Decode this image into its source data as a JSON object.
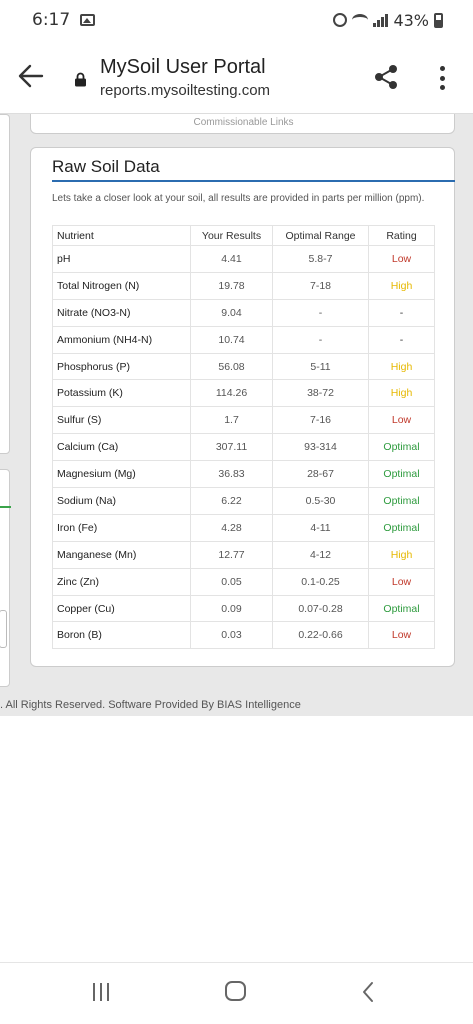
{
  "status_bar": {
    "time": "6:17",
    "battery": "43%",
    "icons": [
      "image-icon",
      "alarm-icon",
      "wifi-icon",
      "signal-icon",
      "battery-icon"
    ]
  },
  "browser": {
    "title": "MySoil User Portal",
    "url": "reports.mysoiltesting.com",
    "icons": [
      "back-arrow-icon",
      "lock-icon",
      "share-icon",
      "more-vert-icon"
    ]
  },
  "top_card": {
    "link_text": "Commissionable Links"
  },
  "card": {
    "title": "Raw Soil Data",
    "intro": "Lets take a closer look at your soil, all results are provided in parts per million (ppm).",
    "columns": [
      "Nutrient",
      "Your Results",
      "Optimal Range",
      "Rating"
    ],
    "rows": [
      {
        "nutrient": "pH",
        "result": "4.41",
        "range": "5.8-7",
        "rating": "Low"
      },
      {
        "nutrient": "Total Nitrogen (N)",
        "result": "19.78",
        "range": "7-18",
        "rating": "High"
      },
      {
        "nutrient": "Nitrate (NO3-N)",
        "result": "9.04",
        "range": "-",
        "rating": "-"
      },
      {
        "nutrient": "Ammonium (NH4-N)",
        "result": "10.74",
        "range": "-",
        "rating": "-"
      },
      {
        "nutrient": "Phosphorus (P)",
        "result": "56.08",
        "range": "5-11",
        "rating": "High"
      },
      {
        "nutrient": "Potassium (K)",
        "result": "114.26",
        "range": "38-72",
        "rating": "High"
      },
      {
        "nutrient": "Sulfur (S)",
        "result": "1.7",
        "range": "7-16",
        "rating": "Low"
      },
      {
        "nutrient": "Calcium (Ca)",
        "result": "307.11",
        "range": "93-314",
        "rating": "Optimal"
      },
      {
        "nutrient": "Magnesium (Mg)",
        "result": "36.83",
        "range": "28-67",
        "rating": "Optimal"
      },
      {
        "nutrient": "Sodium (Na)",
        "result": "6.22",
        "range": "0.5-30",
        "rating": "Optimal"
      },
      {
        "nutrient": "Iron (Fe)",
        "result": "4.28",
        "range": "4-11",
        "rating": "Optimal"
      },
      {
        "nutrient": "Manganese (Mn)",
        "result": "12.77",
        "range": "4-12",
        "rating": "High"
      },
      {
        "nutrient": "Zinc (Zn)",
        "result": "0.05",
        "range": "0.1-0.25",
        "rating": "Low"
      },
      {
        "nutrient": "Copper (Cu)",
        "result": "0.09",
        "range": "0.07-0.28",
        "rating": "Optimal"
      },
      {
        "nutrient": "Boron (B)",
        "result": "0.03",
        "range": "0.22-0.66",
        "rating": "Low"
      }
    ]
  },
  "footer": {
    "text": ". All Rights Reserved. Software Provided By BIAS Intelligence"
  },
  "colors": {
    "low": "#c0392b",
    "high": "#e6b800",
    "optimal": "#2e9b3e",
    "title_rule": "#2b6cb0"
  },
  "nav_bar": {
    "icons": [
      "recent-apps-icon",
      "home-icon",
      "back-icon"
    ]
  }
}
